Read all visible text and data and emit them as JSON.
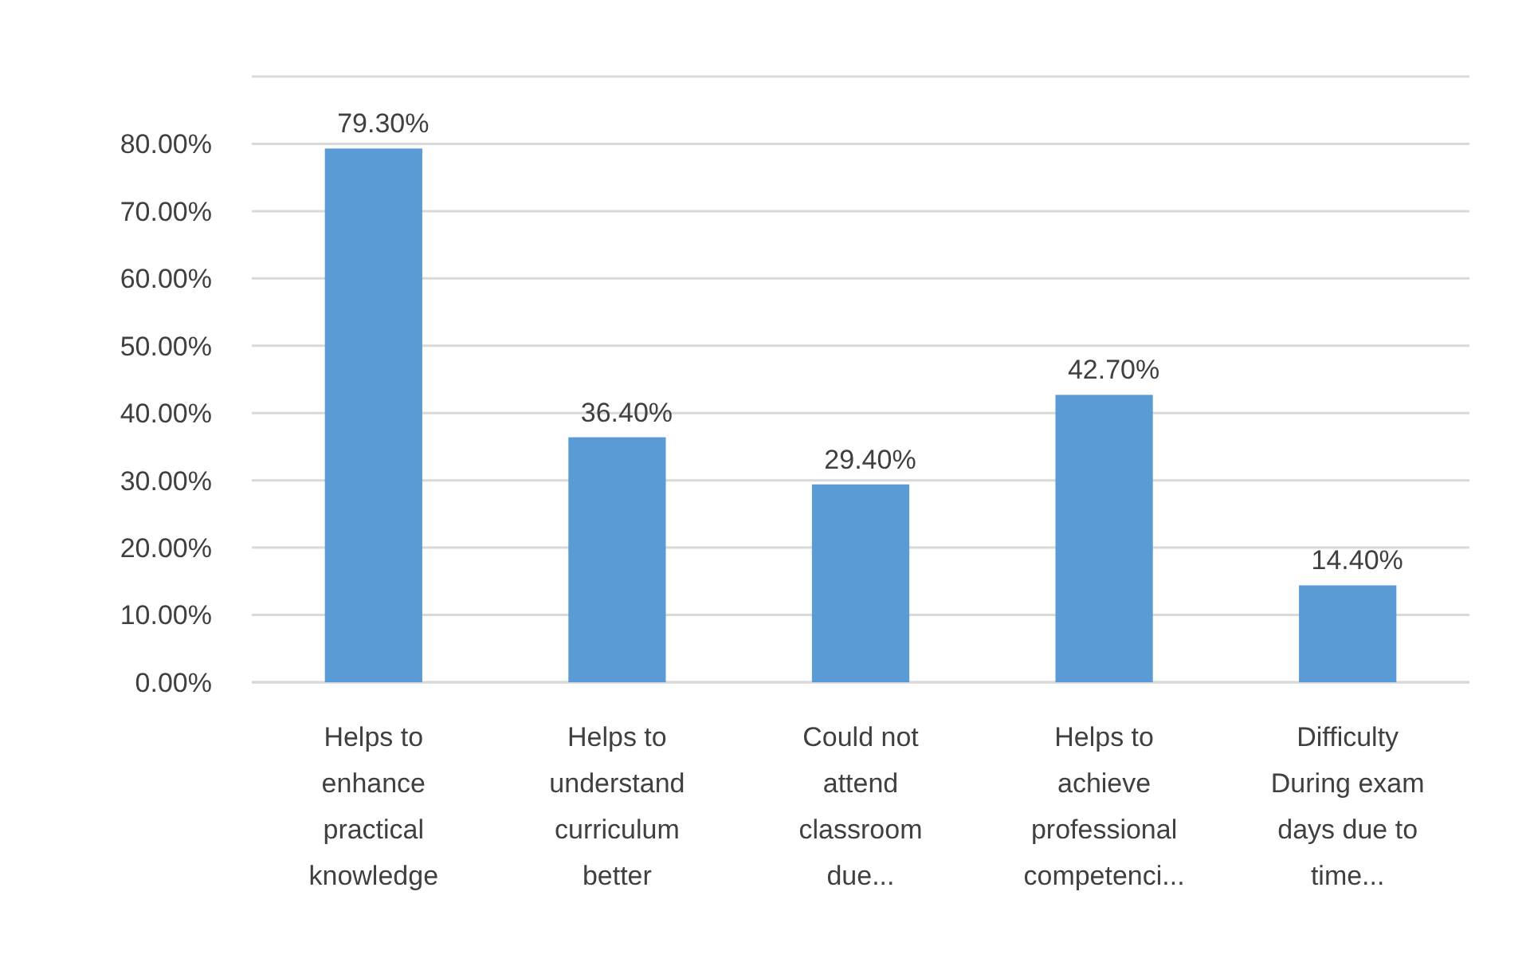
{
  "chart_data": {
    "type": "bar",
    "categories": [
      "Helps to enhance practical knowledge",
      "Helps to understand curriculum better",
      "Could not attend classroom due...",
      "Helps to achieve professional competenci...",
      "Difficulty During exam days due to time..."
    ],
    "values": [
      79.3,
      36.4,
      29.4,
      42.7,
      14.4
    ],
    "value_labels": [
      "79.30%",
      "36.40%",
      "29.40%",
      "42.70%",
      "14.40%"
    ],
    "color": "#5b9bd5",
    "ylim": [
      0,
      90
    ],
    "yticks": [
      {
        "value": 0,
        "label": "0.00%"
      },
      {
        "value": 10,
        "label": "10.00%"
      },
      {
        "value": 20,
        "label": "20.00%"
      },
      {
        "value": 30,
        "label": "30.00%"
      },
      {
        "value": 40,
        "label": "40.00%"
      },
      {
        "value": 50,
        "label": "50.00%"
      },
      {
        "value": 60,
        "label": "60.00%"
      },
      {
        "value": 70,
        "label": "70.00%"
      },
      {
        "value": 80,
        "label": "80.00%"
      },
      {
        "value": 90,
        "label": null
      }
    ],
    "grid": true
  }
}
